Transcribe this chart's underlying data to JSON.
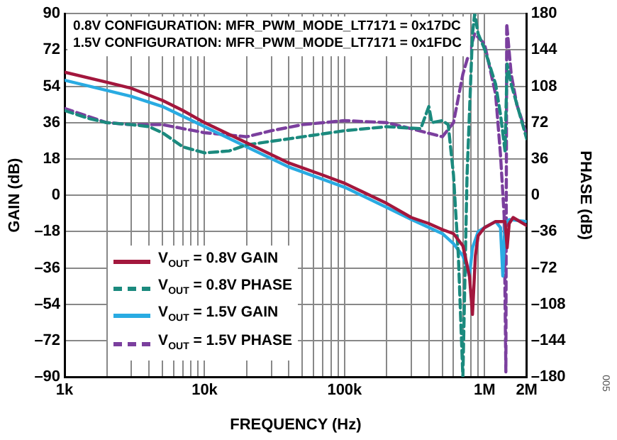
{
  "chart_data": {
    "type": "line",
    "xlabel": "FREQUENCY (Hz)",
    "ylabel": "GAIN (dB)",
    "y2label": "PHASE (dB)",
    "annotations": [
      "0.8V CONFIGURATION: MFR_PWM_MODE_LT7171 = 0x17DC",
      "1.5V CONFIGURATION: MFR_PWM_MODE_LT7171 = 0x1FDC",
      "005"
    ],
    "log": "x",
    "grid": true,
    "legend": "bottom left",
    "marker": "none",
    "xlim": [
      1000,
      2000000
    ],
    "xticks": [
      {
        "value": 1000,
        "label": "1k"
      },
      {
        "value": 2000,
        "label": null
      },
      {
        "value": 3000,
        "label": null
      },
      {
        "value": 4000,
        "label": null
      },
      {
        "value": 5000,
        "label": null
      },
      {
        "value": 6000,
        "label": null
      },
      {
        "value": 7000,
        "label": null
      },
      {
        "value": 8000,
        "label": null
      },
      {
        "value": 9000,
        "label": null
      },
      {
        "value": 10000,
        "label": "10k"
      },
      {
        "value": 20000,
        "label": null
      },
      {
        "value": 30000,
        "label": null
      },
      {
        "value": 40000,
        "label": null
      },
      {
        "value": 50000,
        "label": null
      },
      {
        "value": 60000,
        "label": null
      },
      {
        "value": 70000,
        "label": null
      },
      {
        "value": 80000,
        "label": null
      },
      {
        "value": 90000,
        "label": null
      },
      {
        "value": 100000,
        "label": "100k"
      },
      {
        "value": 200000,
        "label": null
      },
      {
        "value": 300000,
        "label": null
      },
      {
        "value": 400000,
        "label": null
      },
      {
        "value": 500000,
        "label": null
      },
      {
        "value": 600000,
        "label": null
      },
      {
        "value": 700000,
        "label": null
      },
      {
        "value": 800000,
        "label": null
      },
      {
        "value": 900000,
        "label": null
      },
      {
        "value": 1000000,
        "label": "1M"
      },
      {
        "value": 2000000,
        "label": "2M"
      }
    ],
    "ylim": [
      -90,
      90
    ],
    "yticks": [
      {
        "value": -90,
        "label": "–90"
      },
      {
        "value": -72,
        "label": "–72"
      },
      {
        "value": -54,
        "label": "–54"
      },
      {
        "value": -36,
        "label": "–36"
      },
      {
        "value": -18,
        "label": "–18"
      },
      0,
      18,
      36,
      54,
      72,
      90
    ],
    "y2lim": [
      -180,
      180
    ],
    "y2ticks": [
      {
        "value": -180,
        "label": "–180"
      },
      {
        "value": -144,
        "label": "–144"
      },
      {
        "value": -108,
        "label": "–108"
      },
      {
        "value": -72,
        "label": "–72"
      },
      {
        "value": -36,
        "label": "–36"
      },
      0,
      36,
      72,
      108,
      144,
      180
    ],
    "series": [
      {
        "name": "V$_{OUT}$ = 0.8V GAIN",
        "color": "#a3173d",
        "line_style": "solid",
        "x": [
          1000,
          2000,
          3000,
          5000,
          7000,
          10000,
          20000,
          40000,
          70000,
          100000,
          200000,
          300000,
          400000,
          500000,
          600000,
          700000,
          780000,
          820000,
          860000,
          900000,
          1000000,
          1200000,
          1400000,
          1450000,
          1500000,
          1600000,
          2000000
        ],
        "values": [
          61,
          56,
          53,
          47,
          42,
          36,
          26,
          16,
          10,
          6,
          -4,
          -11,
          -14,
          -17,
          -19,
          -25,
          -40,
          -59,
          -30,
          -20,
          -16,
          -13,
          -13,
          -26,
          -14,
          -11,
          -15
        ]
      },
      {
        "name": "V$_{OUT}$ = 0.8V PHASE",
        "color": "#1b8a7e",
        "line_style": "dashed",
        "axis": "y2",
        "x": [
          1000,
          1500,
          2000,
          3000,
          4000,
          5000,
          7000,
          10000,
          15000,
          20000,
          40000,
          100000,
          200000,
          350000,
          400000,
          420000,
          500000,
          550000,
          600000,
          650000,
          700000,
          750000,
          820000,
          850000,
          900000,
          1000000,
          1200000,
          1300000,
          1400000,
          1450000,
          1550000,
          2000000
        ],
        "values": [
          84,
          76,
          72,
          70,
          68,
          62,
          48,
          42,
          44,
          50,
          56,
          64,
          68,
          66,
          88,
          72,
          74,
          70,
          20,
          -60,
          -180,
          20,
          160,
          180,
          160,
          145,
          110,
          80,
          44,
          130,
          110,
          56
        ]
      },
      {
        "name": "V$_{OUT}$ = 1.5V GAIN",
        "color": "#29abe2",
        "line_style": "solid",
        "x": [
          1000,
          2000,
          3000,
          5000,
          10000,
          20000,
          40000,
          100000,
          200000,
          300000,
          500000,
          600000,
          700000,
          780000,
          820000,
          900000,
          1000000,
          1200000,
          1300000,
          1350000,
          1400000,
          1500000,
          2000000
        ],
        "values": [
          57,
          52,
          49,
          44,
          34,
          24,
          14,
          4,
          -6,
          -12,
          -19,
          -24,
          -30,
          -40,
          -26,
          -18,
          -16,
          -13,
          -16,
          -40,
          -14,
          -12,
          -13
        ]
      },
      {
        "name": "V$_{OUT}$ = 1.5V PHASE",
        "color": "#7b3f9e",
        "line_style": "dashed",
        "axis": "y2",
        "x": [
          1000,
          2000,
          3000,
          5000,
          10000,
          20000,
          30000,
          50000,
          100000,
          200000,
          300000,
          500000,
          600000,
          700000,
          850000,
          1000000,
          1200000,
          1300000,
          1380000,
          1420000,
          1440000,
          1550000,
          1700000,
          2000000
        ],
        "values": [
          86,
          72,
          70,
          70,
          62,
          58,
          64,
          70,
          74,
          72,
          66,
          58,
          72,
          120,
          160,
          150,
          100,
          40,
          -20,
          -175,
          170,
          120,
          90,
          60
        ]
      }
    ]
  }
}
